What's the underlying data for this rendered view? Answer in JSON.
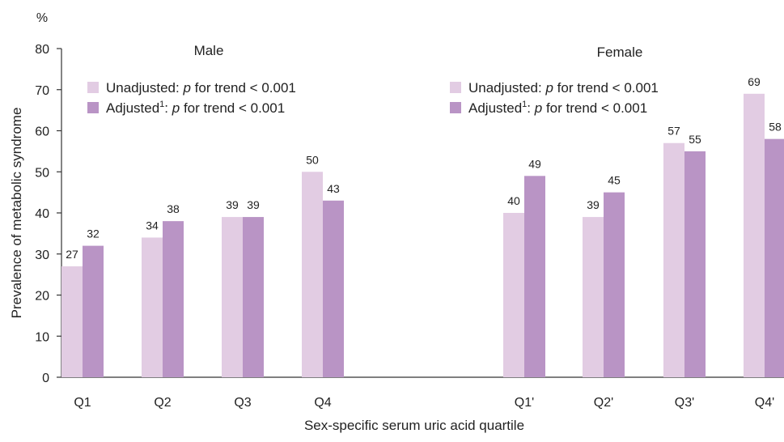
{
  "chart_data": {
    "type": "bar",
    "y_unit": "%",
    "ylabel": "Prevalence of metabolic syndrome",
    "xlabel": "Sex-specific serum uric acid quartile",
    "ylim": [
      0,
      80
    ],
    "yticks": [
      0,
      10,
      20,
      30,
      40,
      50,
      60,
      70,
      80
    ],
    "grid": false,
    "colors": {
      "unadjusted": "#e2cce3",
      "adjusted": "#b994c5"
    },
    "panels": [
      {
        "title": "Male",
        "categories": [
          "Q1",
          "Q2",
          "Q3",
          "Q4"
        ],
        "legend": [
          {
            "key": "unadjusted",
            "text": "Unadjusted: ",
            "p": "p",
            "rest": " for trend < 0.001"
          },
          {
            "key": "adjusted",
            "text": "Adjusted",
            "sup": "1",
            "after": ": ",
            "p": "p",
            "rest": " for trend < 0.001"
          }
        ],
        "series": [
          {
            "key": "unadjusted",
            "values": [
              27,
              34,
              39,
              50
            ]
          },
          {
            "key": "adjusted",
            "values": [
              32,
              38,
              39,
              43
            ]
          }
        ]
      },
      {
        "title": "Female",
        "categories": [
          "Q1'",
          "Q2'",
          "Q3'",
          "Q4'"
        ],
        "legend": [
          {
            "key": "unadjusted",
            "text": "Unadjusted: ",
            "p": "p",
            "rest": " for trend < 0.001"
          },
          {
            "key": "adjusted",
            "text": "Adjusted",
            "sup": "1",
            "after": ": ",
            "p": "p",
            "rest": " for trend < 0.001"
          }
        ],
        "series": [
          {
            "key": "unadjusted",
            "values": [
              40,
              39,
              57,
              69
            ]
          },
          {
            "key": "adjusted",
            "values": [
              49,
              45,
              55,
              58
            ]
          }
        ]
      }
    ]
  }
}
